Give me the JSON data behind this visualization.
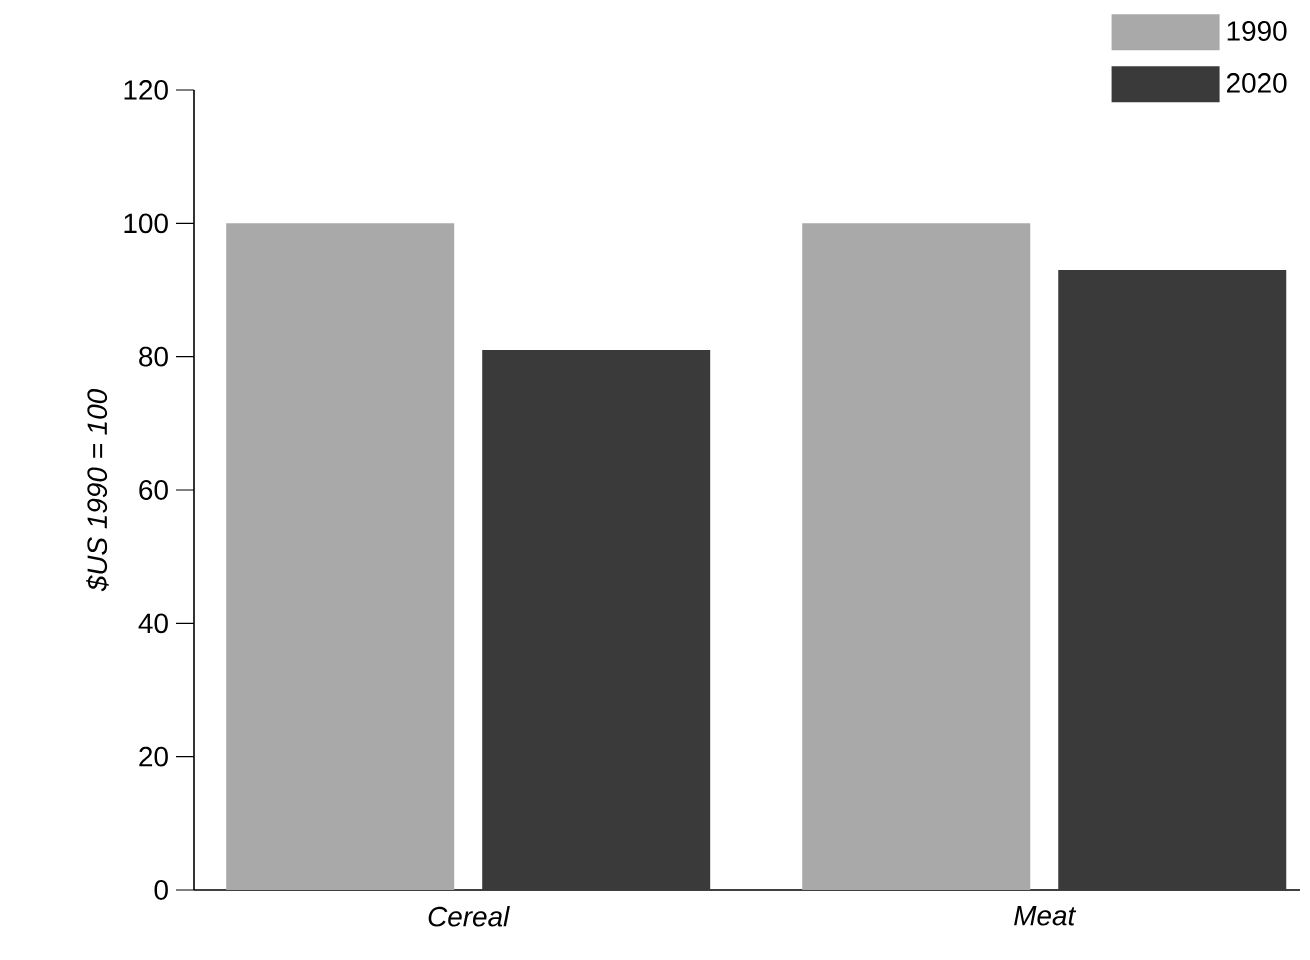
{
  "chart_data": {
    "type": "bar",
    "ylabel": "$US 1990 = 100",
    "categories": [
      "Cereal",
      "Meat"
    ],
    "series": [
      {
        "name": "1990",
        "color": "#a9a9a9",
        "values": [
          100,
          100
        ]
      },
      {
        "name": "2020",
        "color": "#3a3a3a",
        "values": [
          81,
          93
        ]
      }
    ],
    "ylim": [
      0,
      120
    ],
    "yticks": [
      0,
      20,
      40,
      60,
      80,
      100,
      120
    ],
    "legend": "top right"
  }
}
